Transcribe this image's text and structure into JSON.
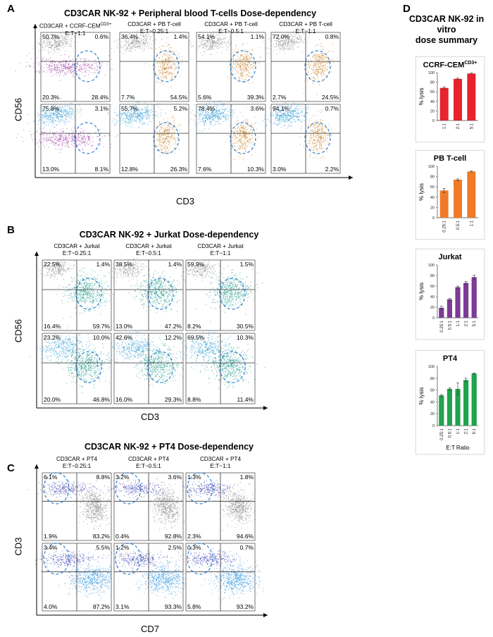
{
  "panel_letters": {
    "a": "A",
    "b": "B",
    "c": "C",
    "d": "D"
  },
  "section_a": {
    "title": "CD3CAR NK-92 + Peripheral blood T-cells Dose-dependency",
    "columns": [
      {
        "line1": "CD3CAR + CCRF-CEM",
        "sup": "CD3+",
        "line2": "E:T~1:1"
      },
      {
        "line1": "CD3CAR + PB T-cell",
        "sup": "",
        "line2": "E:T~0.25:1"
      },
      {
        "line1": "CD3CAR + PB T-cell",
        "sup": "",
        "line2": "E:T~0.5:1"
      },
      {
        "line1": "CD3CAR + PB T-cell",
        "sup": "",
        "line2": "E:T~1:1"
      }
    ],
    "ylabel": "CD56",
    "xlabel": "CD3"
  },
  "section_b": {
    "title": "CD3CAR NK-92 + Jurkat Dose-dependency",
    "columns": [
      {
        "line1": "CD3CAR + Jurkat",
        "sup": "",
        "line2": "E:T~0.25:1"
      },
      {
        "line1": "CD3CAR + Jurkat",
        "sup": "",
        "line2": "E:T~0.5:1"
      },
      {
        "line1": "CD3CAR + Jurkat",
        "sup": "",
        "line2": "E:T~1:1"
      }
    ],
    "ylabel": "CD56",
    "xlabel": "CD3"
  },
  "section_c": {
    "title": "CD3CAR NK-92 + PT4 Dose-dependency",
    "columns": [
      {
        "line1": "CD3CAR + PT4",
        "sup": "",
        "line2": "E:T~0.25:1"
      },
      {
        "line1": "CD3CAR + PT4",
        "sup": "",
        "line2": "E:T~0.5:1"
      },
      {
        "line1": "CD3CAR + PT4",
        "sup": "",
        "line2": "E:T~1:1"
      }
    ],
    "ylabel": "CD3",
    "xlabel": "CD7"
  },
  "colors": {
    "grey": "#8a8a8a",
    "magenta": "#a040a8",
    "orange": "#c8822a",
    "cyan": "#3aa0d8",
    "teal": "#1f9a8e",
    "indigo": "#4a4ab8",
    "blue": "#3b9adf",
    "gate": "#2b7fd0",
    "red": "#e8232e",
    "bar_orange": "#f07a28",
    "purple": "#7d3b96",
    "green": "#1fa34c"
  },
  "chart_data": [
    {
      "type": "scatter",
      "panel": "A",
      "xlabel": "CD3",
      "ylabel": "CD56",
      "plots": [
        {
          "row": 0,
          "col": 0,
          "quadrants": [
            "50.7%",
            "0.6%",
            "20.3%",
            "28.4%"
          ],
          "populations": [
            "grey",
            "magenta"
          ]
        },
        {
          "row": 0,
          "col": 1,
          "quadrants": [
            "36.4%",
            "1.4%",
            "7.7%",
            "54.5%"
          ],
          "populations": [
            "grey",
            "orange"
          ]
        },
        {
          "row": 0,
          "col": 2,
          "quadrants": [
            "54.1%",
            "1.1%",
            "5.6%",
            "39.3%"
          ],
          "populations": [
            "grey",
            "orange"
          ]
        },
        {
          "row": 0,
          "col": 3,
          "quadrants": [
            "72.0%",
            "0.8%",
            "2.7%",
            "24.5%"
          ],
          "populations": [
            "grey",
            "orange"
          ]
        },
        {
          "row": 1,
          "col": 0,
          "quadrants": [
            "75.8%",
            "3.1%",
            "13.0%",
            "8.1%"
          ],
          "populations": [
            "cyan",
            "magenta"
          ]
        },
        {
          "row": 1,
          "col": 1,
          "quadrants": [
            "55.7%",
            "5.2%",
            "12.8%",
            "26.3%"
          ],
          "populations": [
            "cyan",
            "orange"
          ]
        },
        {
          "row": 1,
          "col": 2,
          "quadrants": [
            "78.4%",
            "3.6%",
            "7.6%",
            "10.3%"
          ],
          "populations": [
            "cyan",
            "orange"
          ]
        },
        {
          "row": 1,
          "col": 3,
          "quadrants": [
            "94.1%",
            "0.7%",
            "3.0%",
            "2.2%"
          ],
          "populations": [
            "cyan",
            "orange"
          ]
        }
      ]
    },
    {
      "type": "scatter",
      "panel": "B",
      "xlabel": "CD3",
      "ylabel": "CD56",
      "plots": [
        {
          "row": 0,
          "col": 0,
          "quadrants": [
            "22.5%",
            "1.4%",
            "16.4%",
            "59.7%"
          ],
          "populations": [
            "grey",
            "teal"
          ]
        },
        {
          "row": 0,
          "col": 1,
          "quadrants": [
            "38.5%",
            "1.4%",
            "13.0%",
            "47.2%"
          ],
          "populations": [
            "grey",
            "teal"
          ]
        },
        {
          "row": 0,
          "col": 2,
          "quadrants": [
            "59.9%",
            "1.5%",
            "8.2%",
            "30.5%"
          ],
          "populations": [
            "grey",
            "teal"
          ]
        },
        {
          "row": 1,
          "col": 0,
          "quadrants": [
            "23.2%",
            "10.0%",
            "20.0%",
            "46.8%"
          ],
          "populations": [
            "cyan",
            "teal"
          ]
        },
        {
          "row": 1,
          "col": 1,
          "quadrants": [
            "42.6%",
            "12.2%",
            "16.0%",
            "29.3%"
          ],
          "populations": [
            "cyan",
            "teal"
          ]
        },
        {
          "row": 1,
          "col": 2,
          "quadrants": [
            "69.5%",
            "10.3%",
            "8.8%",
            "11.4%"
          ],
          "populations": [
            "cyan",
            "teal"
          ]
        }
      ]
    },
    {
      "type": "scatter",
      "panel": "C",
      "xlabel": "CD7",
      "ylabel": "CD3",
      "plots": [
        {
          "row": 0,
          "col": 0,
          "quadrants": [
            "6.1%",
            "8.8%",
            "1.9%",
            "83.2%"
          ],
          "populations": [
            "indigo",
            "grey"
          ]
        },
        {
          "row": 0,
          "col": 1,
          "quadrants": [
            "3.2%",
            "3.6%",
            "0.4%",
            "92.8%"
          ],
          "populations": [
            "indigo",
            "grey"
          ]
        },
        {
          "row": 0,
          "col": 2,
          "quadrants": [
            "1.3%",
            "1.8%",
            "2.3%",
            "94.6%"
          ],
          "populations": [
            "indigo",
            "grey"
          ]
        },
        {
          "row": 1,
          "col": 0,
          "quadrants": [
            "3.4%",
            "5.5%",
            "4.0%",
            "87.2%"
          ],
          "populations": [
            "indigo",
            "blue"
          ]
        },
        {
          "row": 1,
          "col": 1,
          "quadrants": [
            "1.2%",
            "2.5%",
            "3.1%",
            "93.3%"
          ],
          "populations": [
            "indigo",
            "blue"
          ]
        },
        {
          "row": 1,
          "col": 2,
          "quadrants": [
            "0.3%",
            "0.7%",
            "5.8%",
            "93.2%"
          ],
          "populations": [
            "indigo",
            "blue"
          ]
        }
      ]
    },
    {
      "type": "bar",
      "panel": "D",
      "title": "CCRF-CEM",
      "title_sup": "CD3+",
      "ylabel": "% lysis",
      "xlabel": "",
      "ylim": [
        0,
        100
      ],
      "yticks": [
        "0",
        "20",
        "40",
        "60",
        "80",
        "100"
      ],
      "categories": [
        "1:1",
        "2:1",
        "5:1"
      ],
      "values": [
        68,
        87,
        98
      ],
      "errors": [
        2,
        1.5,
        1
      ],
      "color": "red"
    },
    {
      "type": "bar",
      "panel": "D",
      "title": "PB T-cell",
      "title_sup": "",
      "ylabel": "% lysis",
      "xlabel": "",
      "ylim": [
        0,
        100
      ],
      "yticks": [
        "0",
        "20",
        "40",
        "60",
        "80",
        "100"
      ],
      "categories": [
        "0.25:1",
        "0.5:1",
        "1:1"
      ],
      "values": [
        53,
        74,
        90
      ],
      "errors": [
        4,
        1.5,
        1
      ],
      "color": "bar_orange"
    },
    {
      "type": "bar",
      "panel": "D",
      "title": "Jurkat",
      "title_sup": "",
      "ylabel": "% lysis",
      "xlabel": "",
      "ylim": [
        0,
        100
      ],
      "yticks": [
        "0",
        "20",
        "40",
        "60",
        "80",
        "100"
      ],
      "categories": [
        "0.25:1",
        "0.5:1",
        "1:1",
        "2:1",
        "5:1"
      ],
      "values": [
        19,
        35,
        58,
        66,
        77
      ],
      "errors": [
        3,
        2,
        2,
        3,
        4
      ],
      "color": "purple"
    },
    {
      "type": "bar",
      "panel": "D",
      "title": "PT4",
      "title_sup": "",
      "ylabel": "% lysis",
      "xlabel": "E:T Ratio",
      "ylim": [
        0,
        100
      ],
      "yticks": [
        "0",
        "20",
        "40",
        "60",
        "80",
        "100"
      ],
      "categories": [
        "0.25:1",
        "0.5:1",
        "1:1",
        "2:1",
        "5:1"
      ],
      "values": [
        51,
        62,
        62,
        77,
        88
      ],
      "errors": [
        1.5,
        2,
        10,
        3,
        1
      ],
      "color": "green"
    }
  ],
  "section_d": {
    "title_line1": "CD3CAR NK-92 in vitro",
    "title_line2": "dose summary"
  }
}
